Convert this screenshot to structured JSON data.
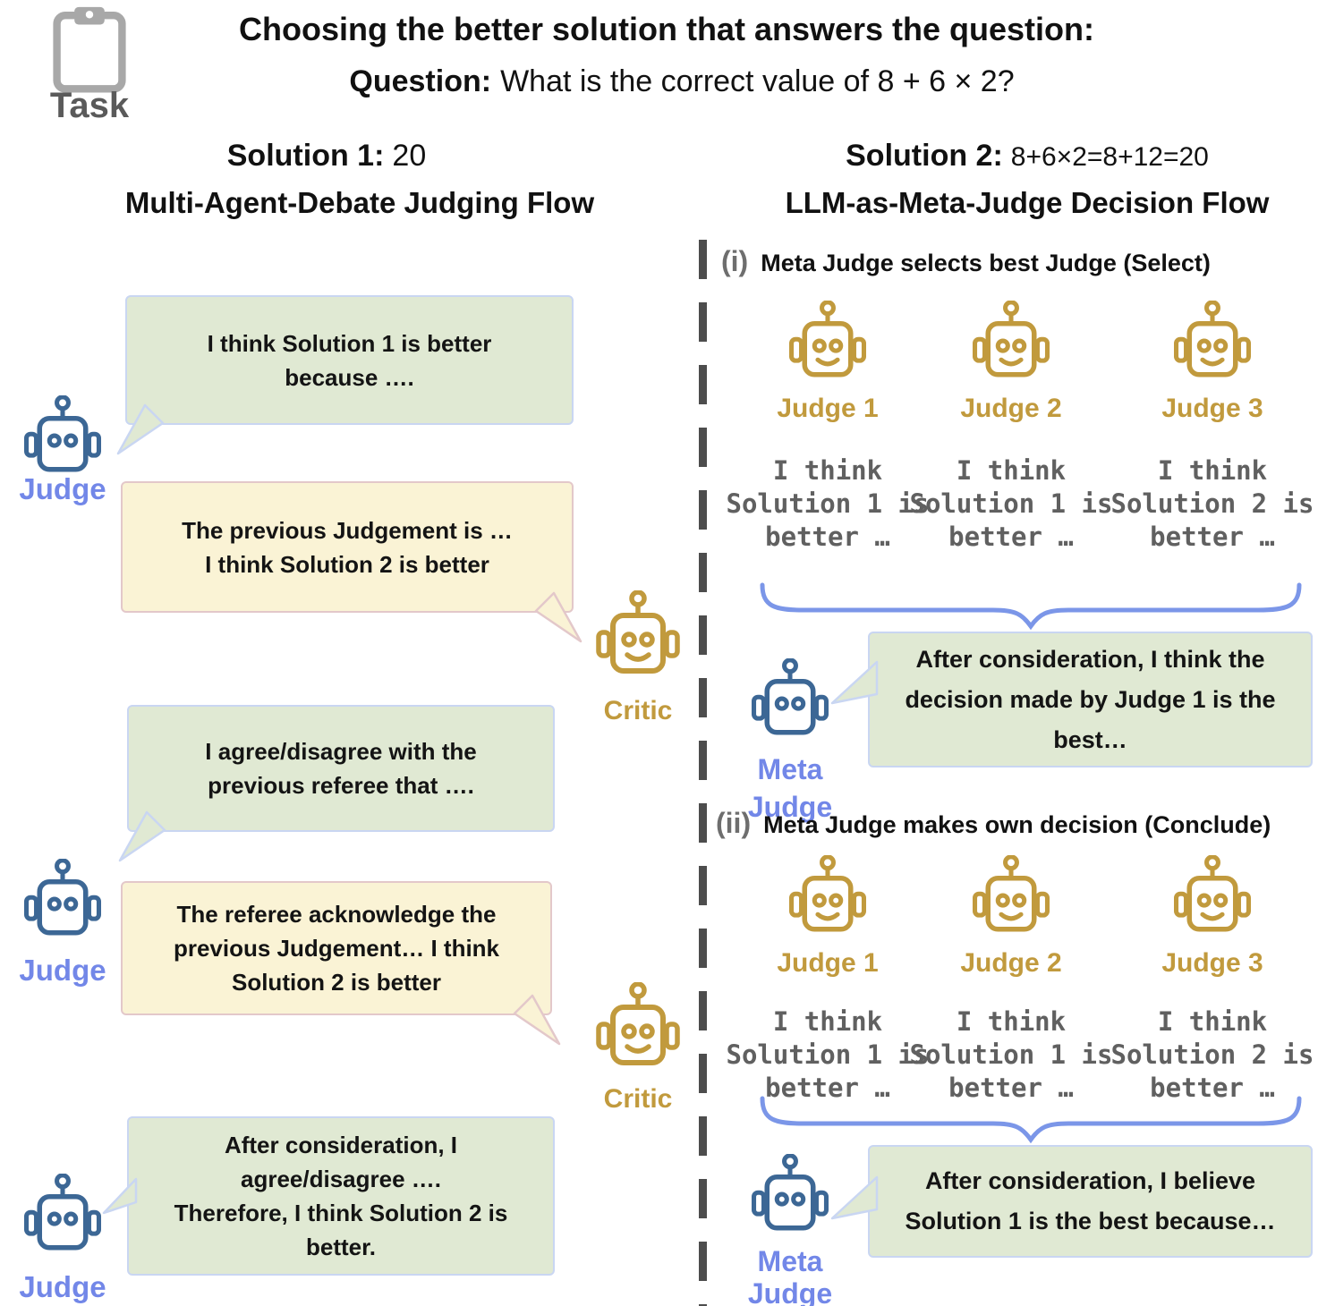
{
  "header": {
    "task_label": "Task",
    "title": "Choosing the better solution that answers the question:",
    "question_label": "Question:",
    "question_text": "What is the correct value of 8 + 6 × 2?"
  },
  "left_column": {
    "solution_label": "Solution 1:",
    "solution_value": "20",
    "flow_title": "Multi-Agent-Debate Judging Flow",
    "judge_label": "Judge",
    "critic_label": "Critic",
    "bubbles": [
      {
        "speaker": "Judge",
        "lines": [
          "I think Solution 1 is better",
          "because …."
        ]
      },
      {
        "speaker": "Critic",
        "lines": [
          "The previous Judgement is …",
          "I think Solution 2 is better"
        ]
      },
      {
        "speaker": "Judge",
        "lines": [
          "I agree/disagree with the",
          "previous referee that …."
        ]
      },
      {
        "speaker": "Critic",
        "lines": [
          "The referee acknowledge the",
          "previous Judgement… I think",
          "Solution 2 is better"
        ]
      },
      {
        "speaker": "Judge",
        "lines": [
          "After consideration, I",
          "agree/disagree ….",
          "Therefore, I think Solution 2 is",
          "better."
        ]
      }
    ]
  },
  "right_column": {
    "solution_label": "Solution 2:",
    "solution_value": "8+6×2=8+12=20",
    "flow_title": "LLM-as-Meta-Judge Decision Flow",
    "meta_judge_label_line1": "Meta",
    "meta_judge_label_line2": "Judge",
    "section_i": {
      "index": "(i)",
      "heading": "Meta Judge selects best Judge (Select)",
      "judges": [
        {
          "label": "Judge 1",
          "quote": [
            "I think",
            "Solution 1 is",
            "better …"
          ]
        },
        {
          "label": "Judge 2",
          "quote": [
            "I think",
            "Solution 1 is",
            "better …"
          ]
        },
        {
          "label": "Judge 3",
          "quote": [
            "I think",
            "Solution 2 is",
            "better …"
          ]
        }
      ],
      "bubble_lines": [
        "After consideration, I think the",
        "decision made by Judge 1 is the",
        "best…"
      ]
    },
    "section_ii": {
      "index": "(ii)",
      "heading": "Meta Judge makes own decision (Conclude)",
      "judges": [
        {
          "label": "Judge 1",
          "quote": [
            "I think",
            "Solution 1 is",
            "better …"
          ]
        },
        {
          "label": "Judge 2",
          "quote": [
            "I think",
            "Solution 1 is",
            "better …"
          ]
        },
        {
          "label": "Judge 3",
          "quote": [
            "I think",
            "Solution 2 is",
            "better …"
          ]
        }
      ],
      "bubble_lines": [
        "After consideration, I believe",
        "Solution 1 is the best because…"
      ]
    }
  },
  "colors": {
    "robot_blue": "#3c6795",
    "robot_gold": "#c19a3d",
    "label_blue": "#7287e8",
    "label_gold": "#c19a3d",
    "bubble_green_fill": "#e0e9d3",
    "bubble_green_border": "#c9d6f2",
    "bubble_yellow_fill": "#faf3d5",
    "bubble_yellow_border": "#e3c8ca",
    "brace_blue": "#7b96e8",
    "divider_gray": "#4d4d4d",
    "quote_gray": "#606060",
    "index_gray": "#6e6e6e",
    "task_gray": "#5a5a5a",
    "clipboard_gray": "#a8a8a8"
  }
}
